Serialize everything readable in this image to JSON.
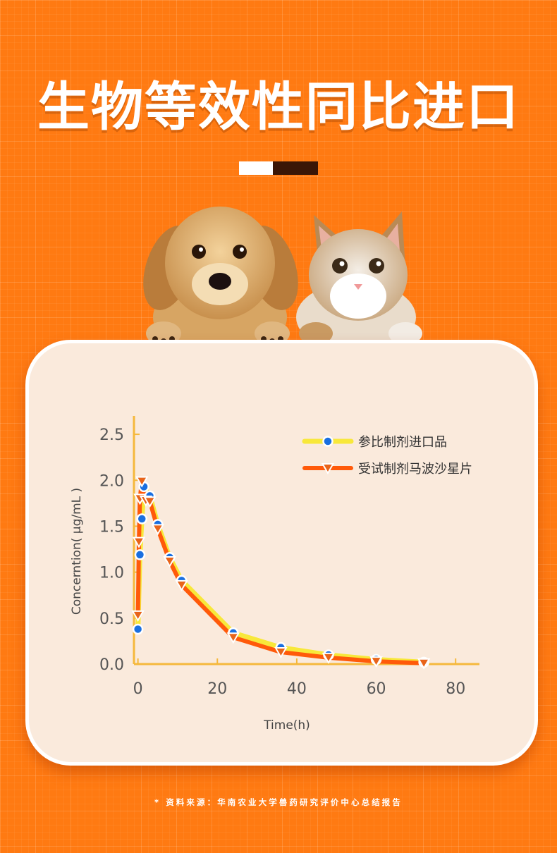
{
  "title": "生物等效性同比进口",
  "source_note": "* 资料来源：华南农业大学兽药研究评价中心总结报告",
  "colors": {
    "background": "#ff7a12",
    "card": "#faeadc",
    "axis": "#f5b83c",
    "series_reference": "#f8e83a",
    "series_reference_marker": "#1a6fe0",
    "series_test": "#ff5a0a",
    "series_test_marker": "#e8641a"
  },
  "icons": [
    "puppy-image",
    "kitten-image"
  ],
  "chart_data": {
    "type": "line",
    "title": "",
    "xlabel": "Time(h)",
    "ylabel": "Concerntion( μg/mL )",
    "xlim": [
      -1,
      86
    ],
    "ylim": [
      0,
      2.7
    ],
    "xticks": [
      0,
      20,
      40,
      60,
      80
    ],
    "yticks": [
      0.0,
      0.5,
      1.0,
      1.5,
      2.0,
      2.5
    ],
    "ytick_labels": [
      "0.0",
      "0.5",
      "1.0",
      "1.5",
      "2.0",
      "2.5"
    ],
    "legend_position": "top-right",
    "grid": false,
    "series": [
      {
        "name": "参比制剂进口品",
        "marker": "circle",
        "x": [
          0,
          0.5,
          1,
          1.5,
          3,
          5,
          8,
          11,
          24,
          36,
          48,
          60,
          72
        ],
        "y": [
          0.38,
          1.19,
          1.58,
          1.93,
          1.83,
          1.52,
          1.16,
          0.91,
          0.34,
          0.18,
          0.1,
          0.05,
          0.02
        ]
      },
      {
        "name": "受试制剂马波沙星片",
        "marker": "triangle-down",
        "x": [
          0,
          0.25,
          0.5,
          1,
          2,
          3,
          5,
          8,
          11,
          24,
          36,
          48,
          60,
          72
        ],
        "y": [
          0.53,
          1.33,
          1.8,
          1.99,
          1.78,
          1.77,
          1.47,
          1.12,
          0.86,
          0.29,
          0.13,
          0.07,
          0.03,
          0.01
        ]
      }
    ]
  }
}
